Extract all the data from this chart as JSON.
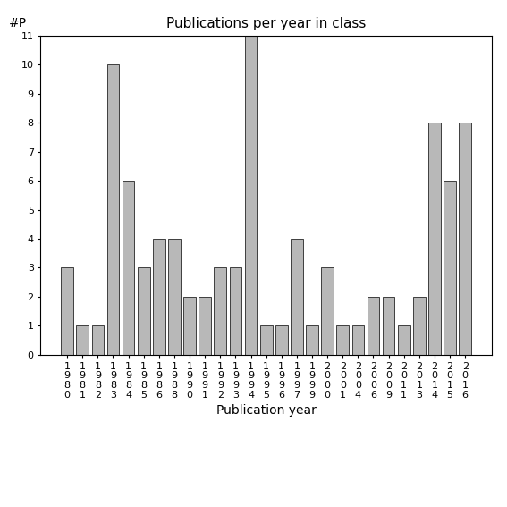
{
  "categories": [
    "1980",
    "1981",
    "1982",
    "1983",
    "1984",
    "1985",
    "1986",
    "1988",
    "1990",
    "1991",
    "1992",
    "1993",
    "1994",
    "1995",
    "1996",
    "1997",
    "1999",
    "2000",
    "2001",
    "2004",
    "2006",
    "2009",
    "2011",
    "2013",
    "2014",
    "2015",
    "2016"
  ],
  "values": [
    3,
    1,
    1,
    10,
    6,
    3,
    4,
    4,
    2,
    2,
    3,
    3,
    11,
    1,
    1,
    4,
    1,
    3,
    1,
    1,
    2,
    2,
    1,
    2,
    8,
    6,
    8
  ],
  "bar_color": "#b8b8b8",
  "bar_edge_color": "#000000",
  "title": "Publications per year in class",
  "xlabel": "Publication year",
  "ylabel": "#P",
  "ylim": [
    0,
    11
  ],
  "yticks": [
    0,
    1,
    2,
    3,
    4,
    5,
    6,
    7,
    8,
    9,
    10,
    11
  ],
  "title_fontsize": 11,
  "label_fontsize": 10,
  "tick_fontsize": 8,
  "background_color": "#ffffff"
}
